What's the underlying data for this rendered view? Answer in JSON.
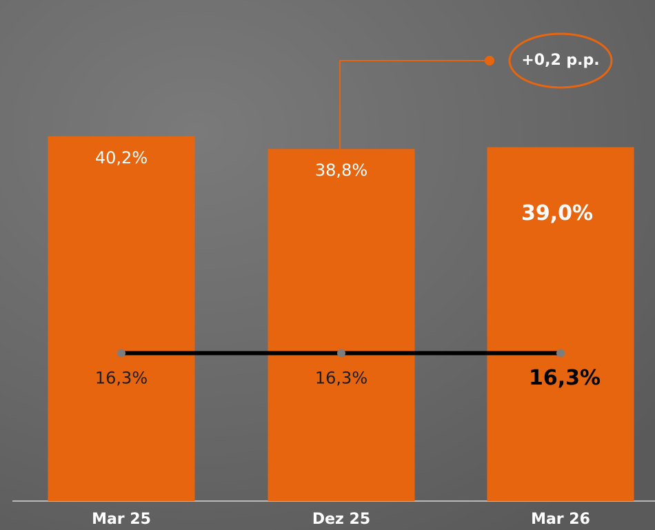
{
  "chart_data": {
    "type": "bar",
    "categories": [
      "Mar 25",
      "Dez 25",
      "Mar 26"
    ],
    "series": [
      {
        "type": "bar",
        "color": "#e8650f",
        "values": [
          40.2,
          38.8,
          39.0
        ],
        "value_labels": [
          "40,2%",
          "38,8%",
          "39,0%"
        ]
      },
      {
        "type": "line",
        "color": "#000000",
        "values": [
          16.3,
          16.3,
          16.3
        ],
        "value_labels": [
          "16,3%",
          "16,3%",
          "16,3%"
        ]
      }
    ],
    "annotation": "+0,2 p.p.",
    "ylim": [
      0,
      51.5
    ]
  }
}
